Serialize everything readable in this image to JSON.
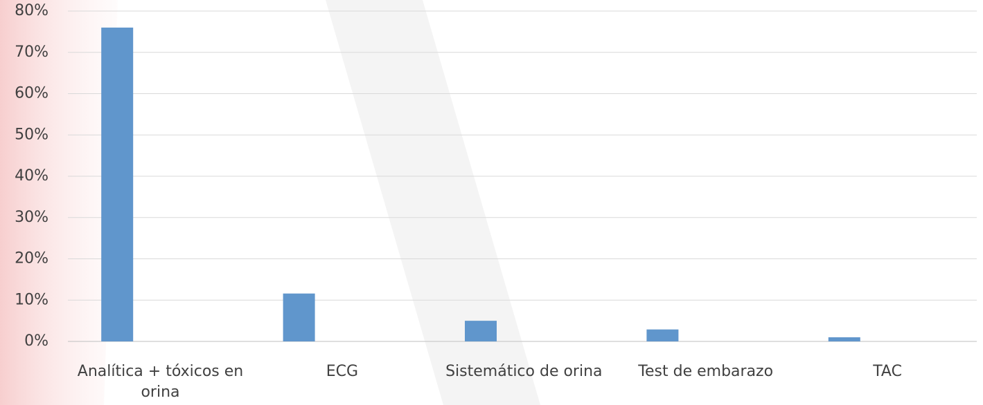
{
  "chart_data": {
    "type": "bar",
    "categories": [
      "Analítica + tóxicos en orina",
      "ECG",
      "Sistemático de orina",
      "Test de embarazo",
      "TAC"
    ],
    "values": [
      76,
      11.6,
      5,
      2.9,
      1
    ],
    "color": "#6096cc",
    "ylim": [
      0,
      80
    ],
    "yticks": [
      {
        "value": 0,
        "label": "0%"
      },
      {
        "value": 10,
        "label": "10%"
      },
      {
        "value": 20,
        "label": "20%"
      },
      {
        "value": 30,
        "label": "30%"
      },
      {
        "value": 40,
        "label": "40%"
      },
      {
        "value": 50,
        "label": "50%"
      },
      {
        "value": 60,
        "label": "60%"
      },
      {
        "value": 70,
        "label": "70%"
      },
      {
        "value": 80,
        "label": "80%"
      }
    ],
    "grid": true
  }
}
